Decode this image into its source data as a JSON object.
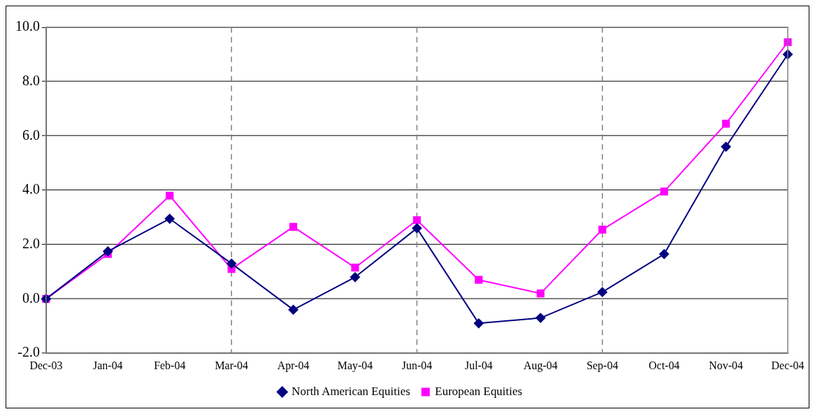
{
  "chart_data": {
    "type": "line",
    "categories": [
      "Dec-03",
      "Jan-04",
      "Feb-04",
      "Mar-04",
      "Apr-04",
      "May-04",
      "Jun-04",
      "Jul-04",
      "Aug-04",
      "Sep-04",
      "Oct-04",
      "Nov-04",
      "Dec-04"
    ],
    "series": [
      {
        "name": "North American Equities",
        "color": "#000080",
        "marker": "diamond",
        "values": [
          0,
          1.75,
          2.95,
          1.3,
          -0.4,
          0.8,
          2.6,
          -0.9,
          -0.7,
          0.25,
          1.65,
          5.6,
          9.0
        ]
      },
      {
        "name": "European Equities",
        "color": "#ff00ff",
        "marker": "square",
        "values": [
          0,
          1.65,
          3.8,
          1.1,
          2.65,
          1.15,
          2.9,
          0.7,
          0.2,
          2.55,
          3.95,
          6.45,
          9.45
        ]
      }
    ],
    "ylim": [
      -2,
      10
    ],
    "yticks": [
      {
        "value": -2,
        "label": "-2.0"
      },
      {
        "value": 0,
        "label": "0.0"
      },
      {
        "value": 2,
        "label": "2.0"
      },
      {
        "value": 4,
        "label": "4.0"
      },
      {
        "value": 6,
        "label": "6.0"
      },
      {
        "value": 8,
        "label": "8.0"
      },
      {
        "value": 10,
        "label": "10.0"
      }
    ],
    "grid": "y",
    "legend": "bottom",
    "line_style": "solid",
    "ref_lines": [
      {
        "axis": "x",
        "value": "Mar-04",
        "color": "#808080",
        "line_style": "dashed"
      },
      {
        "axis": "x",
        "value": "Jun-04",
        "color": "#808080",
        "line_style": "dashed"
      },
      {
        "axis": "x",
        "value": "Sep-04",
        "color": "#808080",
        "line_style": "dashed"
      }
    ]
  }
}
